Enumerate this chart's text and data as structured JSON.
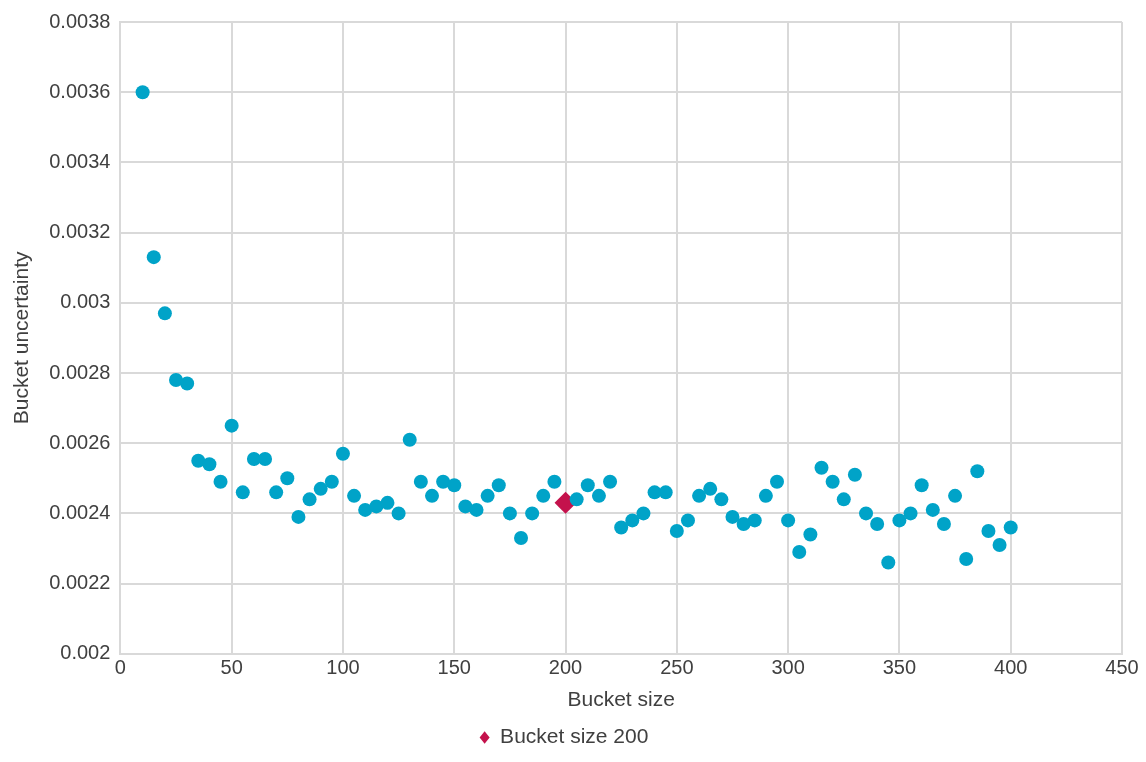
{
  "chart_data": {
    "type": "scatter",
    "xlabel": "Bucket size",
    "ylabel": "Bucket uncertainty",
    "xlim": [
      0,
      450
    ],
    "xticks": [
      0,
      50,
      100,
      150,
      200,
      250,
      300,
      350,
      400,
      450
    ],
    "ylim": [
      0.002,
      0.0038
    ],
    "yticks": [
      0.002,
      0.0022,
      0.0024,
      0.0026,
      0.0028,
      0.003,
      0.0032,
      0.0034,
      0.0036,
      0.0038
    ],
    "grid": true,
    "legend": "bottom",
    "series": [
      {
        "color": "#00a3c8",
        "marker": "circle",
        "x": [
          10,
          15,
          20,
          25,
          30,
          35,
          40,
          45,
          50,
          55,
          60,
          65,
          70,
          75,
          80,
          85,
          90,
          95,
          100,
          105,
          110,
          115,
          120,
          125,
          130,
          135,
          140,
          145,
          150,
          155,
          160,
          165,
          170,
          175,
          180,
          185,
          190,
          195,
          205,
          210,
          215,
          220,
          225,
          230,
          235,
          240,
          245,
          250,
          255,
          260,
          265,
          270,
          275,
          280,
          285,
          290,
          295,
          300,
          305,
          310,
          315,
          320,
          325,
          330,
          335,
          340,
          345,
          350,
          355,
          360,
          365,
          370,
          375,
          380,
          385,
          390,
          395,
          400
        ],
        "values": [
          0.0036,
          0.00313,
          0.00297,
          0.00278,
          0.00277,
          0.00255,
          0.00254,
          0.00249,
          0.00265,
          0.00246,
          0.002555,
          0.002555,
          0.00246,
          0.0025,
          0.00239,
          0.00244,
          0.00247,
          0.00249,
          0.00257,
          0.00245,
          0.00241,
          0.00242,
          0.00243,
          0.0024,
          0.00261,
          0.00249,
          0.00245,
          0.00249,
          0.00248,
          0.00242,
          0.00241,
          0.00245,
          0.00248,
          0.0024,
          0.00233,
          0.0024,
          0.00245,
          0.00249,
          0.00244,
          0.00248,
          0.00245,
          0.00249,
          0.00236,
          0.00238,
          0.0024,
          0.00246,
          0.00246,
          0.00235,
          0.00238,
          0.00245,
          0.00247,
          0.00244,
          0.00239,
          0.00237,
          0.00238,
          0.00245,
          0.00249,
          0.00238,
          0.00229,
          0.00234,
          0.00253,
          0.00249,
          0.00244,
          0.00251,
          0.0024,
          0.00237,
          0.00226,
          0.00238,
          0.0024,
          0.00248,
          0.00241,
          0.00237,
          0.00245,
          0.00227,
          0.00252,
          0.00235,
          0.00231,
          0.00236
        ]
      },
      {
        "name": "Bucket size 200",
        "color": "#c4124c",
        "marker": "diamond",
        "x": [
          200
        ],
        "values": [
          0.00243
        ]
      }
    ]
  }
}
